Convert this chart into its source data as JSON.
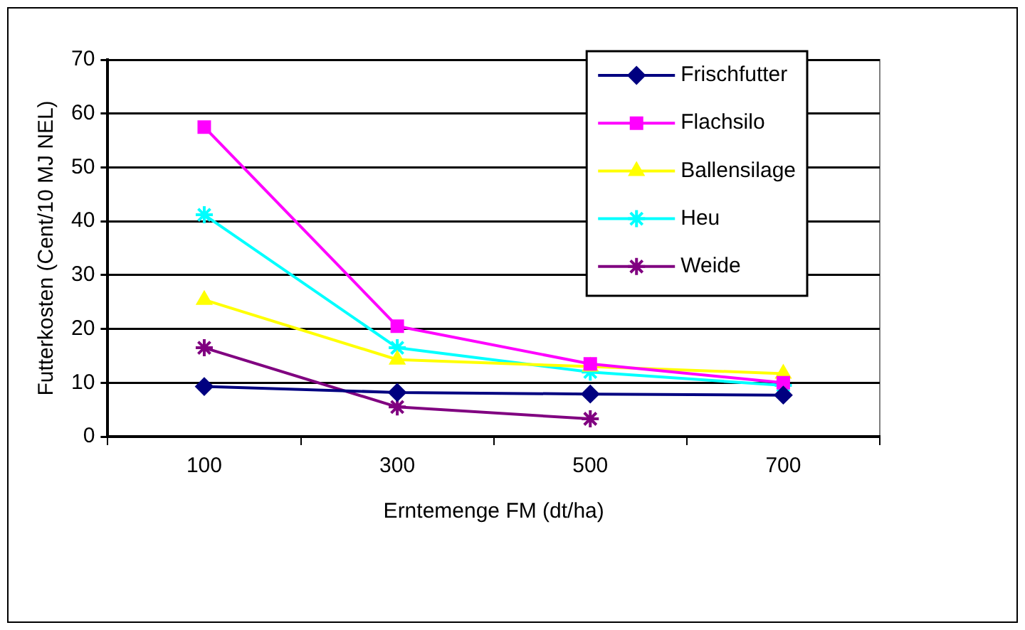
{
  "chart_data": {
    "type": "line",
    "xlabel": "Erntemenge FM (dt/ha)",
    "ylabel": "Futterkosten (Cent/10 MJ NEL)",
    "categories": [
      "100",
      "300",
      "500",
      "700"
    ],
    "ylim": [
      0,
      70
    ],
    "yticks": [
      0,
      10,
      20,
      30,
      40,
      50,
      60,
      70
    ],
    "grid": "y",
    "legend": "top right",
    "line_style": "solid",
    "series": [
      {
        "name": "Frischfutter",
        "color": "#000080",
        "marker": "diamond",
        "values": [
          9.3,
          8.2,
          7.9,
          7.7
        ]
      },
      {
        "name": "Flachsilo",
        "color": "#ff00ff",
        "marker": "square",
        "values": [
          57.5,
          20.5,
          13.5,
          10
        ]
      },
      {
        "name": "Ballensilage",
        "color": "#ffff00",
        "marker": "triangle",
        "values": [
          25.4,
          14.3,
          13,
          11.7
        ]
      },
      {
        "name": "Heu",
        "color": "#00ffff",
        "marker": "cross",
        "values": [
          41.2,
          16.5,
          12,
          9.5
        ]
      },
      {
        "name": "Weide",
        "color": "#800080",
        "marker": "cross",
        "values": [
          16.5,
          5.5,
          3.3,
          null
        ]
      }
    ]
  }
}
